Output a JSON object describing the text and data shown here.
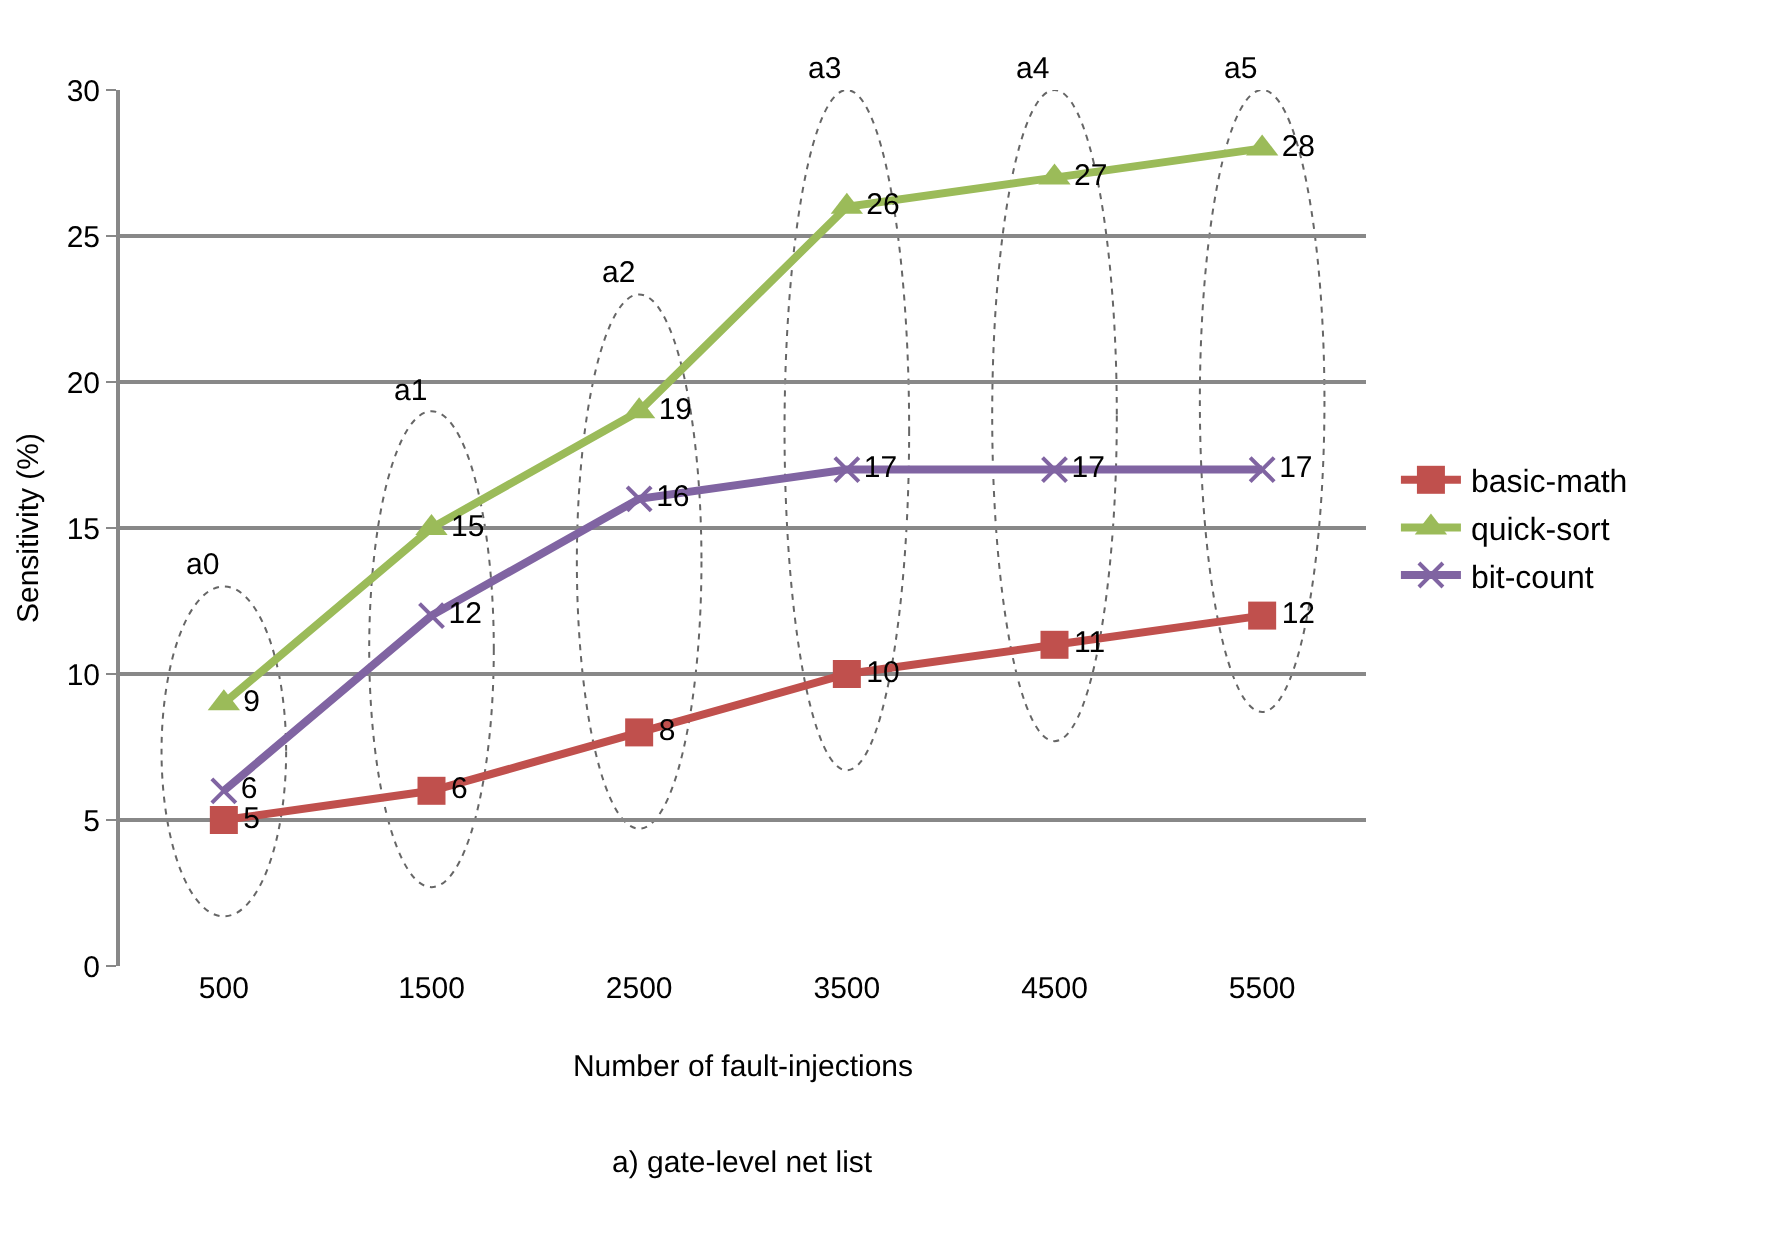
{
  "chart_data": {
    "type": "line",
    "xlabel": "Number of fault-injections",
    "ylabel": "Sensitivity (%)",
    "categories": [
      "500",
      "1500",
      "2500",
      "3500",
      "4500",
      "5500"
    ],
    "series": [
      {
        "name": "basic-math",
        "color": "#c0504d",
        "marker": "square",
        "values": [
          5,
          6,
          8,
          10,
          11,
          12
        ]
      },
      {
        "name": "quick-sort",
        "color": "#9bbb59",
        "marker": "triangle",
        "values": [
          9,
          15,
          19,
          26,
          27,
          28
        ]
      },
      {
        "name": "bit-count",
        "color": "#8064a2",
        "marker": "cross",
        "values": [
          6,
          12,
          16,
          17,
          17,
          17
        ]
      }
    ],
    "ylim": [
      0,
      30
    ],
    "yticks": [
      0,
      5,
      10,
      15,
      20,
      25,
      30
    ],
    "grid": "y",
    "legend": "right",
    "data_labels": true,
    "annotations": [
      "a0",
      "a1",
      "a2",
      "a3",
      "a4",
      "a5",
      "a) gate-level net list"
    ]
  }
}
